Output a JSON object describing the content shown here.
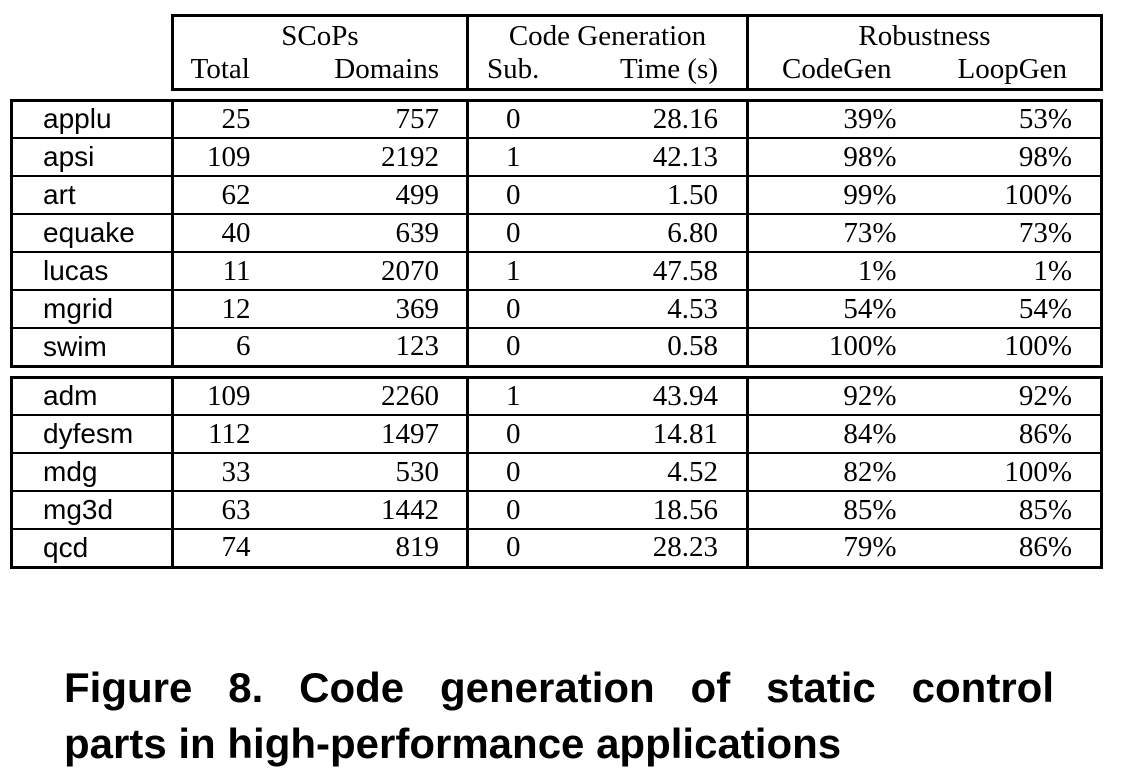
{
  "table": {
    "group_headers": {
      "scops": "SCoPs",
      "codegen": "Code Generation",
      "robustness": "Robustness"
    },
    "column_headers": {
      "total": "Total",
      "domains": "Domains",
      "sub": "Sub.",
      "time": "Time (s)",
      "codegen": "CodeGen",
      "loopgen": "LoopGen"
    },
    "group1": [
      {
        "name": "applu",
        "total": "25",
        "domains": "757",
        "sub": "0",
        "time": "28.16",
        "codegen": "39%",
        "loopgen": "53%"
      },
      {
        "name": "apsi",
        "total": "109",
        "domains": "2192",
        "sub": "1",
        "time": "42.13",
        "codegen": "98%",
        "loopgen": "98%"
      },
      {
        "name": "art",
        "total": "62",
        "domains": "499",
        "sub": "0",
        "time": "1.50",
        "codegen": "99%",
        "loopgen": "100%"
      },
      {
        "name": "equake",
        "total": "40",
        "domains": "639",
        "sub": "0",
        "time": "6.80",
        "codegen": "73%",
        "loopgen": "73%"
      },
      {
        "name": "lucas",
        "total": "11",
        "domains": "2070",
        "sub": "1",
        "time": "47.58",
        "codegen": "1%",
        "loopgen": "1%"
      },
      {
        "name": "mgrid",
        "total": "12",
        "domains": "369",
        "sub": "0",
        "time": "4.53",
        "codegen": "54%",
        "loopgen": "54%"
      },
      {
        "name": "swim",
        "total": "6",
        "domains": "123",
        "sub": "0",
        "time": "0.58",
        "codegen": "100%",
        "loopgen": "100%"
      }
    ],
    "group2": [
      {
        "name": "adm",
        "total": "109",
        "domains": "2260",
        "sub": "1",
        "time": "43.94",
        "codegen": "92%",
        "loopgen": "92%"
      },
      {
        "name": "dyfesm",
        "total": "112",
        "domains": "1497",
        "sub": "0",
        "time": "14.81",
        "codegen": "84%",
        "loopgen": "86%"
      },
      {
        "name": "mdg",
        "total": "33",
        "domains": "530",
        "sub": "0",
        "time": "4.52",
        "codegen": "82%",
        "loopgen": "100%"
      },
      {
        "name": "mg3d",
        "total": "63",
        "domains": "1442",
        "sub": "0",
        "time": "18.56",
        "codegen": "85%",
        "loopgen": "85%"
      },
      {
        "name": "qcd",
        "total": "74",
        "domains": "819",
        "sub": "0",
        "time": "28.23",
        "codegen": "79%",
        "loopgen": "86%"
      }
    ]
  },
  "caption": {
    "line1": "Figure 8. Code generation of static control",
    "line2": "parts in high-performance applications"
  }
}
